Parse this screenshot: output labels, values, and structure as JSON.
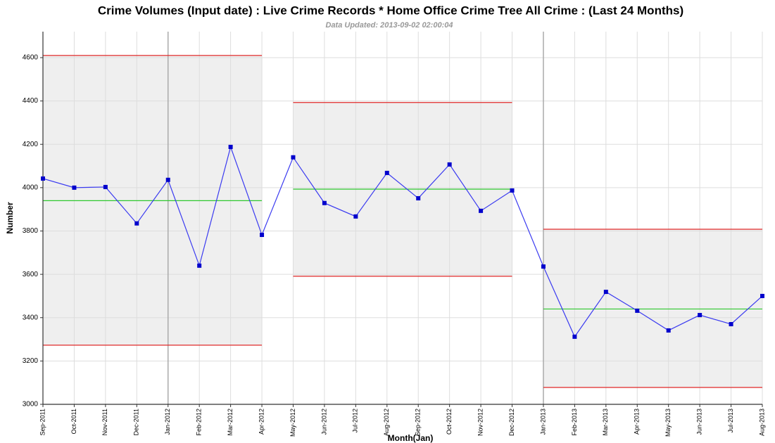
{
  "chart_data": {
    "type": "line",
    "title": "Crime Volumes (Input date) : Live Crime Records * Home Office Crime Tree All Crime : (Last 24 Months)",
    "subtitle": "Data Updated: 2013-09-02 02:00:04",
    "x_label": "Month(Jan)",
    "y_label": "Number",
    "categories": [
      "Sep-2011",
      "Oct-2011",
      "Nov-2011",
      "Dec-2011",
      "Jan-2012",
      "Feb-2012",
      "Mar-2012",
      "Apr-2012",
      "May-2012",
      "Jun-2012",
      "Jul-2012",
      "Aug-2012",
      "Sep-2012",
      "Oct-2012",
      "Nov-2012",
      "Dec-2012",
      "Jan-2013",
      "Feb-2013",
      "Mar-2013",
      "Apr-2013",
      "May-2013",
      "Jun-2013",
      "Jul-2013",
      "Aug-2013"
    ],
    "values": [
      4042,
      4000,
      4003,
      3835,
      4036,
      3640,
      4188,
      3782,
      4140,
      3929,
      3867,
      4068,
      3951,
      4107,
      3893,
      3987,
      3636,
      3312,
      3519,
      3432,
      3341,
      3412,
      3370,
      3500
    ],
    "color": "#3a3af0",
    "marker_color": "#0000cc",
    "highlight_categories": [
      "Jan-2012",
      "Jan-2013"
    ],
    "limit_segments": [
      {
        "from": "Sep-2011",
        "to": "Apr-2012",
        "upper": 4610,
        "mean": 3940,
        "lower": 3273
      },
      {
        "from": "May-2012",
        "to": "Dec-2012",
        "upper": 4393,
        "mean": 3993,
        "lower": 3591
      },
      {
        "from": "Jan-2013",
        "to": "Aug-2013",
        "upper": 3808,
        "mean": 3440,
        "lower": 3078
      }
    ],
    "limit_color": "#e02828",
    "mean_color": "#2ec82e",
    "band_color": "#efefef",
    "ylim": [
      3000,
      4720
    ],
    "yticks": [
      3000,
      3200,
      3400,
      3600,
      3800,
      4000,
      4200,
      4400,
      4600
    ],
    "grid": true
  }
}
